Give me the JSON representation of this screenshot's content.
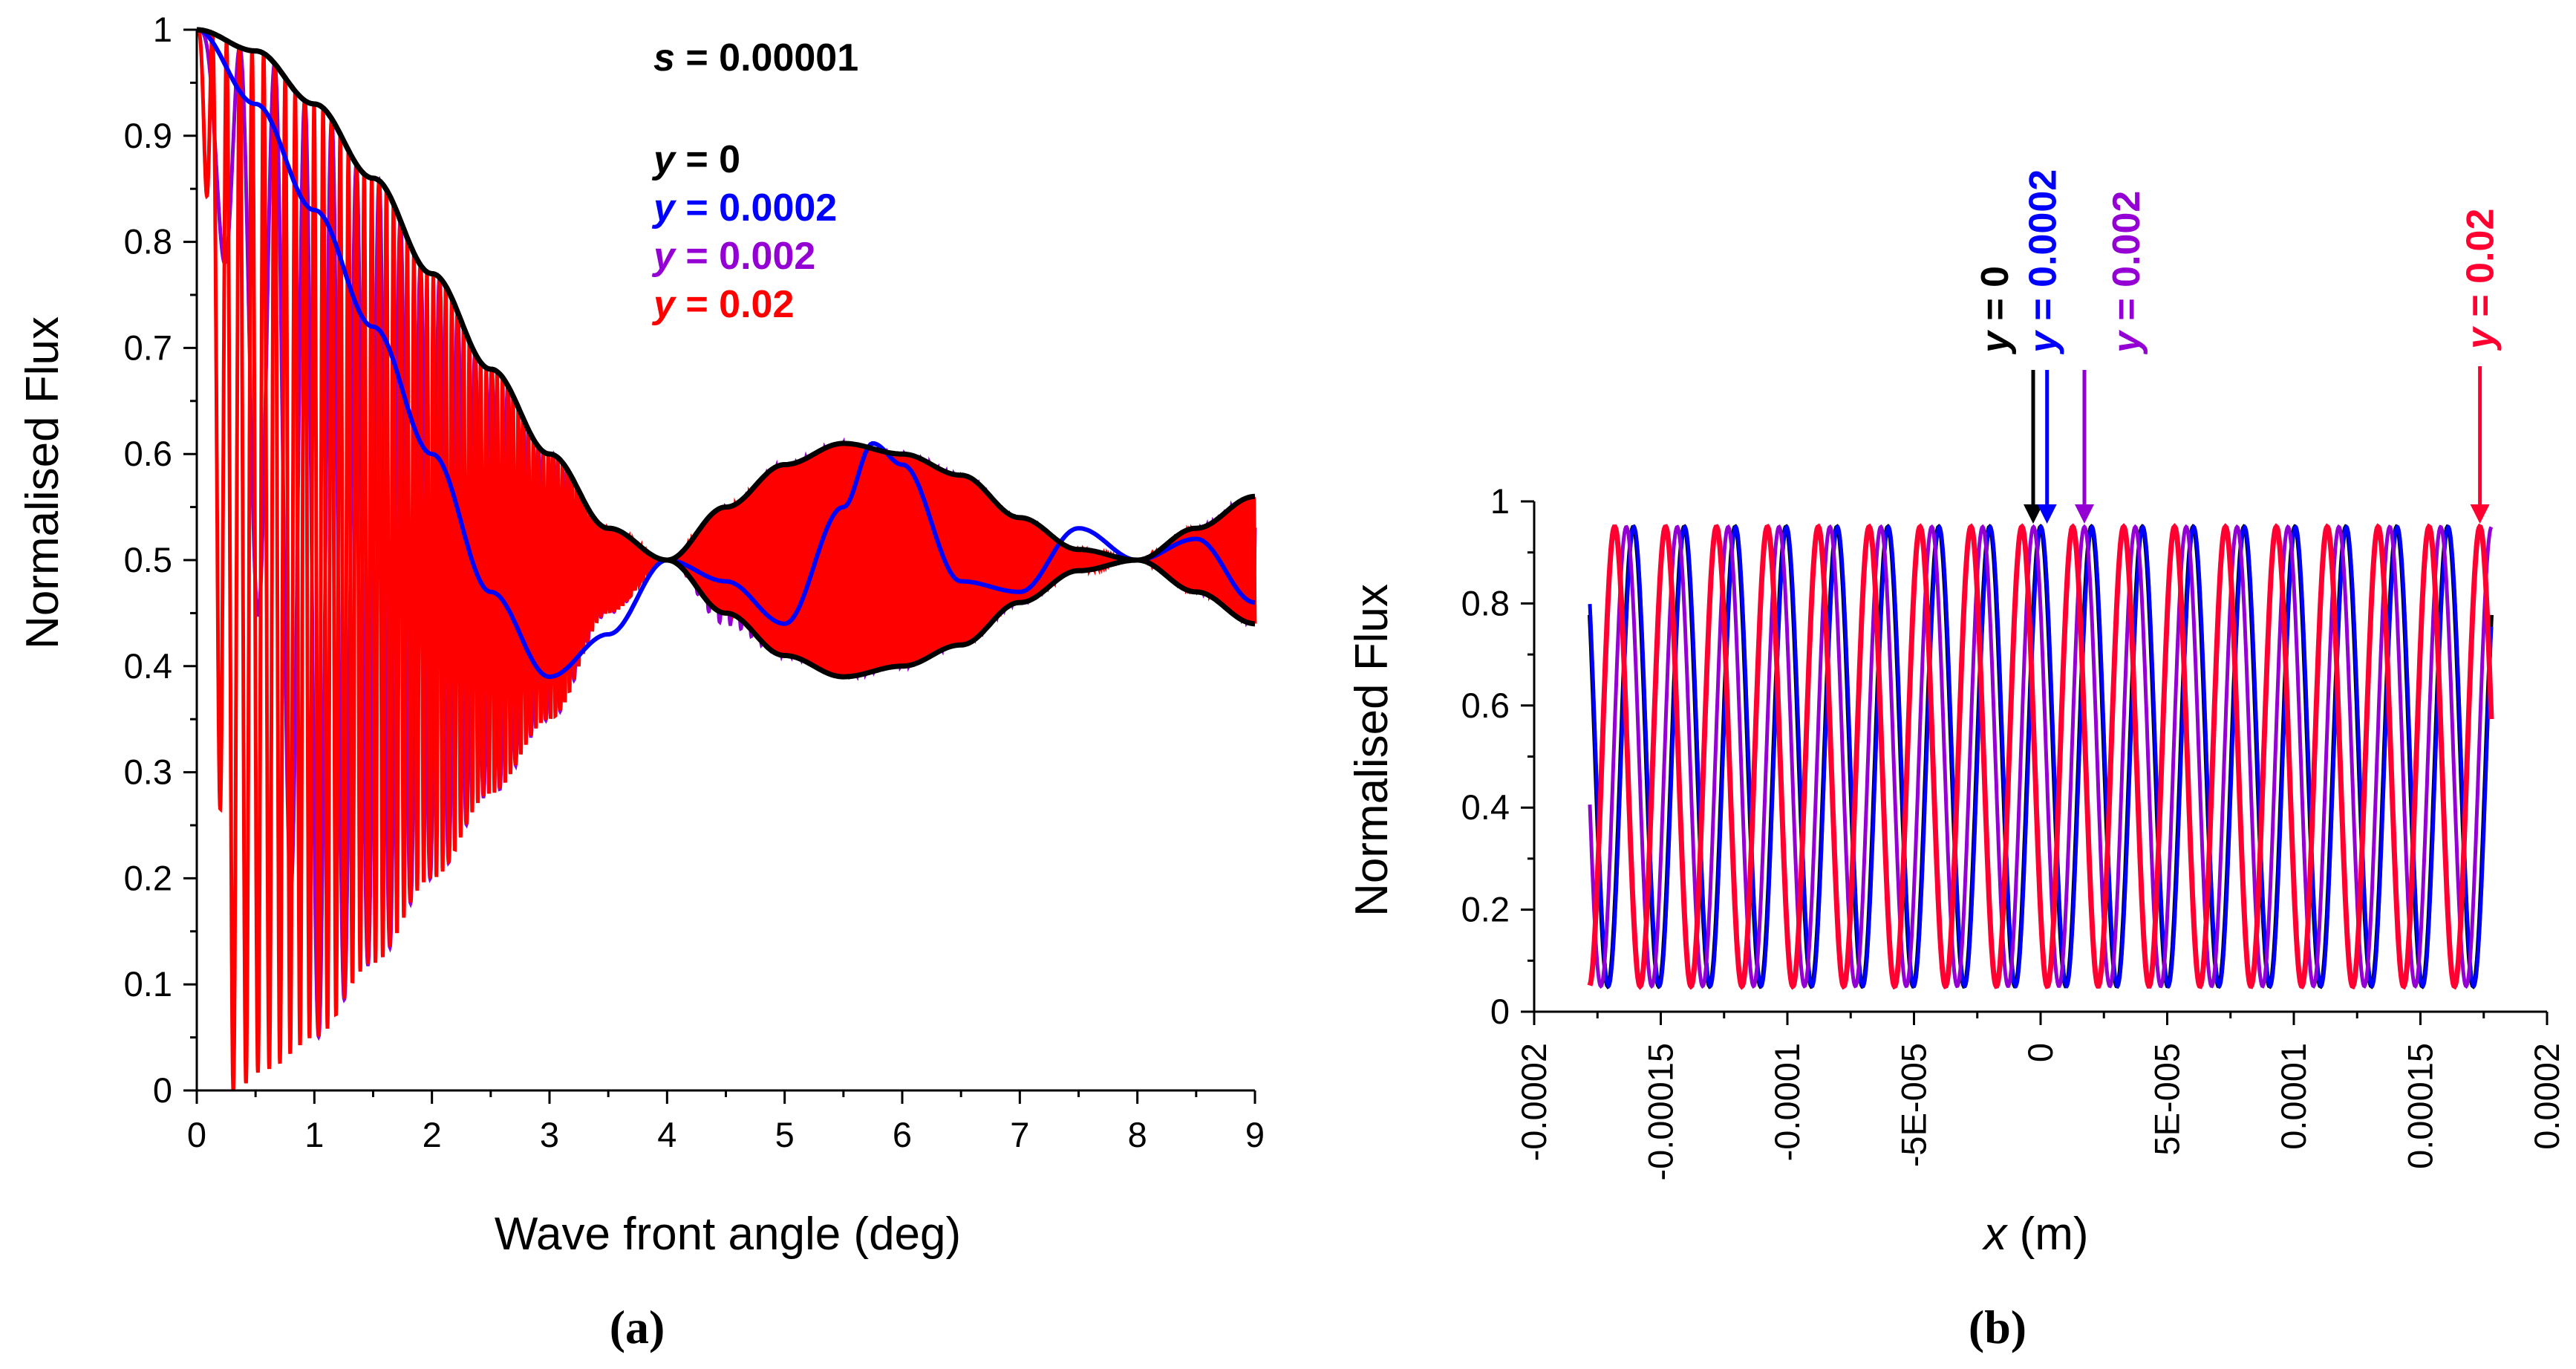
{
  "chart_data": [
    {
      "panel": "(a)",
      "type": "line",
      "xlabel": "Wave front angle (deg)",
      "ylabel": "Normalised Flux",
      "xlim": [
        0,
        9
      ],
      "ylim": [
        0,
        1
      ],
      "xticks": [
        "0",
        "1",
        "2",
        "3",
        "4",
        "5",
        "6",
        "7",
        "8",
        "9"
      ],
      "yticks": [
        "0",
        "0.1",
        "0.2",
        "0.3",
        "0.4",
        "0.5",
        "0.6",
        "0.7",
        "0.8",
        "0.9",
        "1"
      ],
      "annotation": {
        "var": "s",
        "text": " = 0.00001"
      },
      "series": [
        {
          "name": "y = 0",
          "var": "y",
          "label": " = 0",
          "color": "#000000",
          "x": [
            0,
            0.5,
            1,
            1.5,
            2,
            2.5,
            3,
            3.5,
            4,
            4.5,
            5,
            5.5,
            6,
            6.5,
            7,
            7.5,
            8,
            8.5,
            9
          ],
          "upper": [
            1.0,
            0.98,
            0.93,
            0.86,
            0.77,
            0.68,
            0.6,
            0.53,
            0.5,
            0.55,
            0.59,
            0.61,
            0.6,
            0.58,
            0.54,
            0.51,
            0.5,
            0.53,
            0.56
          ],
          "lower": [
            1.0,
            0.98,
            0.93,
            0.86,
            0.77,
            0.68,
            0.6,
            0.53,
            0.5,
            0.45,
            0.41,
            0.39,
            0.4,
            0.42,
            0.46,
            0.49,
            0.5,
            0.47,
            0.44
          ]
        },
        {
          "name": "y = 0.0002",
          "var": "y",
          "label": " = 0.0002",
          "color": "#0000ff",
          "x": [
            0,
            0.5,
            1,
            1.5,
            2,
            2.5,
            3,
            3.5,
            4,
            4.5,
            5,
            5.5,
            5.75,
            6,
            6.5,
            7,
            7.5,
            8,
            8.5,
            9
          ],
          "y": [
            1.0,
            0.93,
            0.83,
            0.72,
            0.6,
            0.47,
            0.39,
            0.43,
            0.5,
            0.48,
            0.44,
            0.55,
            0.61,
            0.59,
            0.48,
            0.47,
            0.53,
            0.5,
            0.52,
            0.46
          ]
        },
        {
          "name": "y = 0.002",
          "var": "y",
          "label": " = 0.002",
          "color": "#9400d3",
          "description": "rapid oscillation between the black envelope and a lower bound reaching 0.05 near 1 deg",
          "lower_env_x": [
            0,
            0.5,
            1,
            1.5,
            2,
            2.5,
            3,
            3.5,
            4,
            4.5,
            5,
            5.5,
            6,
            6.5,
            7,
            7.5,
            8,
            8.5,
            9
          ],
          "lower_env": [
            1.0,
            0.45,
            0.05,
            0.12,
            0.2,
            0.28,
            0.35,
            0.45,
            0.5,
            0.44,
            0.41,
            0.39,
            0.4,
            0.42,
            0.46,
            0.49,
            0.5,
            0.47,
            0.44
          ]
        },
        {
          "name": "y = 0.02",
          "var": "y",
          "label": " = 0.02",
          "color": "#ff0000",
          "description": "very fast oscillation whose minima reach 0 near 0.3 deg and then rise along the lower envelope",
          "lower_env_x": [
            0,
            0.3,
            0.6,
            1,
            1.5,
            2,
            2.5,
            3,
            3.5,
            4,
            4.5,
            5,
            5.5,
            6,
            6.5,
            7,
            7.5,
            8,
            8.5,
            9
          ],
          "lower_env": [
            1.0,
            0.0,
            0.02,
            0.05,
            0.12,
            0.2,
            0.28,
            0.35,
            0.45,
            0.5,
            0.45,
            0.41,
            0.39,
            0.4,
            0.42,
            0.46,
            0.49,
            0.5,
            0.47,
            0.44
          ]
        }
      ]
    },
    {
      "panel": "(b)",
      "type": "line",
      "xlabel_var": "x",
      "xlabel_rest": " (m)",
      "ylabel": "Normalised Flux",
      "xlim": [
        -0.0002,
        0.0002
      ],
      "ylim": [
        0,
        1
      ],
      "x_start": -0.000178,
      "x_end": 0.000178,
      "xticks": [
        {
          "value": -0.0002,
          "label": "-0.0002"
        },
        {
          "value": -0.00015,
          "label": "-0.00015"
        },
        {
          "value": -0.0001,
          "label": "-0.0001"
        },
        {
          "value": -5e-05,
          "label": "-5E-005"
        },
        {
          "value": 0,
          "label": "0"
        },
        {
          "value": 5e-05,
          "label": "5E-005"
        },
        {
          "value": 0.0001,
          "label": "0.0001"
        },
        {
          "value": 0.00015,
          "label": "0.00015"
        },
        {
          "value": 0.0002,
          "label": "0.0002"
        }
      ],
      "yticks": [
        "0",
        "0.2",
        "0.4",
        "0.6",
        "0.8",
        "1"
      ],
      "fringe_period": 2.01e-05,
      "fringe_min": 0.05,
      "fringe_max": 0.95,
      "series": [
        {
          "name": "y = 0",
          "var": "y",
          "label": " = 0",
          "color": "#000000",
          "peak_x": 0
        },
        {
          "name": "y = 0.0002",
          "var": "y",
          "label": " = 0.0002",
          "color": "#0000ff",
          "peak_x": 2e-07
        },
        {
          "name": "y = 0.002",
          "var": "y",
          "label": " = 0.002",
          "color": "#9400d3",
          "peak_x": 1.73e-05
        },
        {
          "name": "y = 0.02",
          "var": "y",
          "label": " = 0.02",
          "color": "#ff0030",
          "peak_x": 0.0001735
        }
      ]
    }
  ]
}
